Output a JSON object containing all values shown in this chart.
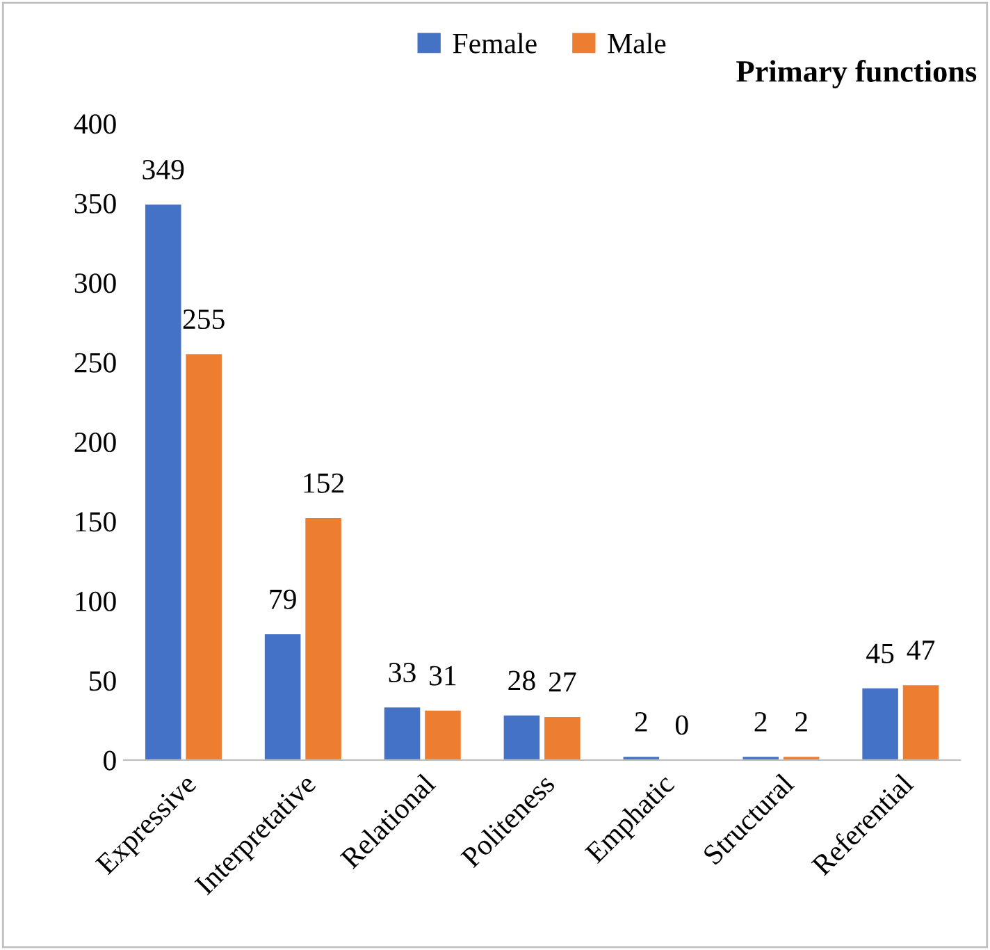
{
  "chart_data": {
    "type": "bar",
    "title": "Primary functions",
    "categories": [
      "Expressive",
      "Interpretative",
      "Relational",
      "Politeness",
      "Emphatic",
      "Structural",
      "Referential"
    ],
    "series": [
      {
        "name": "Female",
        "color": "#4472c4",
        "values": [
          349,
          79,
          33,
          28,
          2,
          2,
          45
        ]
      },
      {
        "name": "Male",
        "color": "#ed7d31",
        "values": [
          255,
          152,
          31,
          27,
          0,
          2,
          47
        ]
      }
    ],
    "ylim": [
      0,
      400
    ],
    "yticks": [
      0,
      50,
      100,
      150,
      200,
      250,
      300,
      350,
      400
    ],
    "grid": false,
    "legend": "top",
    "data_labels": true
  }
}
